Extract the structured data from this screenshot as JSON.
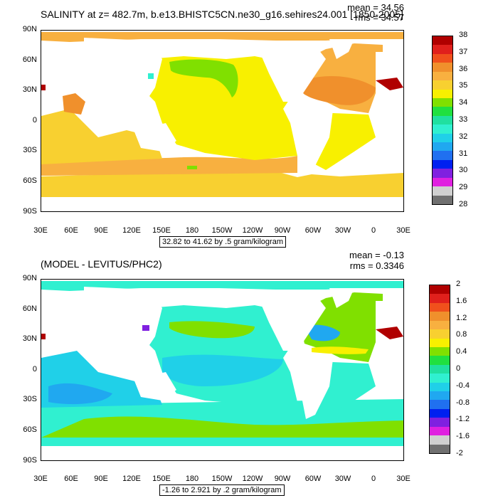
{
  "top": {
    "title": "SALINITY at z= 482.7m, b.e13.BHISTC5CN.ne30_g16.sehires24.001 [1850-2005]",
    "mean": "mean = 34.56",
    "rms": "rms = 34.57",
    "footnote": "32.82 to 41.62 by .5 gram/kilogram",
    "colorbar_labels": [
      "38",
      "37",
      "36",
      "35",
      "34",
      "33",
      "32",
      "31",
      "30",
      "29",
      "28"
    ],
    "colorbar_colors": [
      "#b00000",
      "#e0201c",
      "#f0501c",
      "#f0902c",
      "#f8b040",
      "#f8d030",
      "#f8f000",
      "#80e000",
      "#20e040",
      "#20e0a0",
      "#30f0d0",
      "#20d0e8",
      "#20a8f0",
      "#2070f0",
      "#0020f0",
      "#8020e0",
      "#e020e0",
      "#d0d0d0",
      "#707070"
    ]
  },
  "bottom": {
    "title": "(MODEL - LEVITUS/PHC2)",
    "mean": "mean = -0.13",
    "rms": "rms = 0.3346",
    "footnote": "-1.26 to 2.921 by .2 gram/kilogram",
    "colorbar_labels": [
      "2",
      "1.6",
      "1.2",
      "0.8",
      "0.4",
      "0",
      "-0.4",
      "-0.8",
      "-1.2",
      "-1.6",
      "-2"
    ],
    "colorbar_colors": [
      "#b00000",
      "#e0201c",
      "#f0501c",
      "#f0902c",
      "#f8b040",
      "#f8d030",
      "#f8f000",
      "#80e000",
      "#20e040",
      "#20e0a0",
      "#30f0d0",
      "#20d0e8",
      "#20a8f0",
      "#2070f0",
      "#0020f0",
      "#8020e0",
      "#e020e0",
      "#d0d0d0",
      "#707070"
    ]
  },
  "lat_labels": [
    "90N",
    "60N",
    "30N",
    "0",
    "30S",
    "60S",
    "90S"
  ],
  "lon_labels": [
    "30E",
    "60E",
    "90E",
    "120E",
    "150E",
    "180",
    "150W",
    "120W",
    "90W",
    "60W",
    "30W",
    "0",
    "30E"
  ],
  "colors": {
    "land": "#ffffff",
    "top_main": "#f8f000",
    "top_ocean_warm": "#f8b040",
    "top_ocean_hot": "#f0902c",
    "top_green": "#80e000",
    "bottom_main": "#30f0d0",
    "bottom_green": "#80e000",
    "bottom_light": "#20d0e8",
    "bottom_blue": "#20a8f0"
  }
}
